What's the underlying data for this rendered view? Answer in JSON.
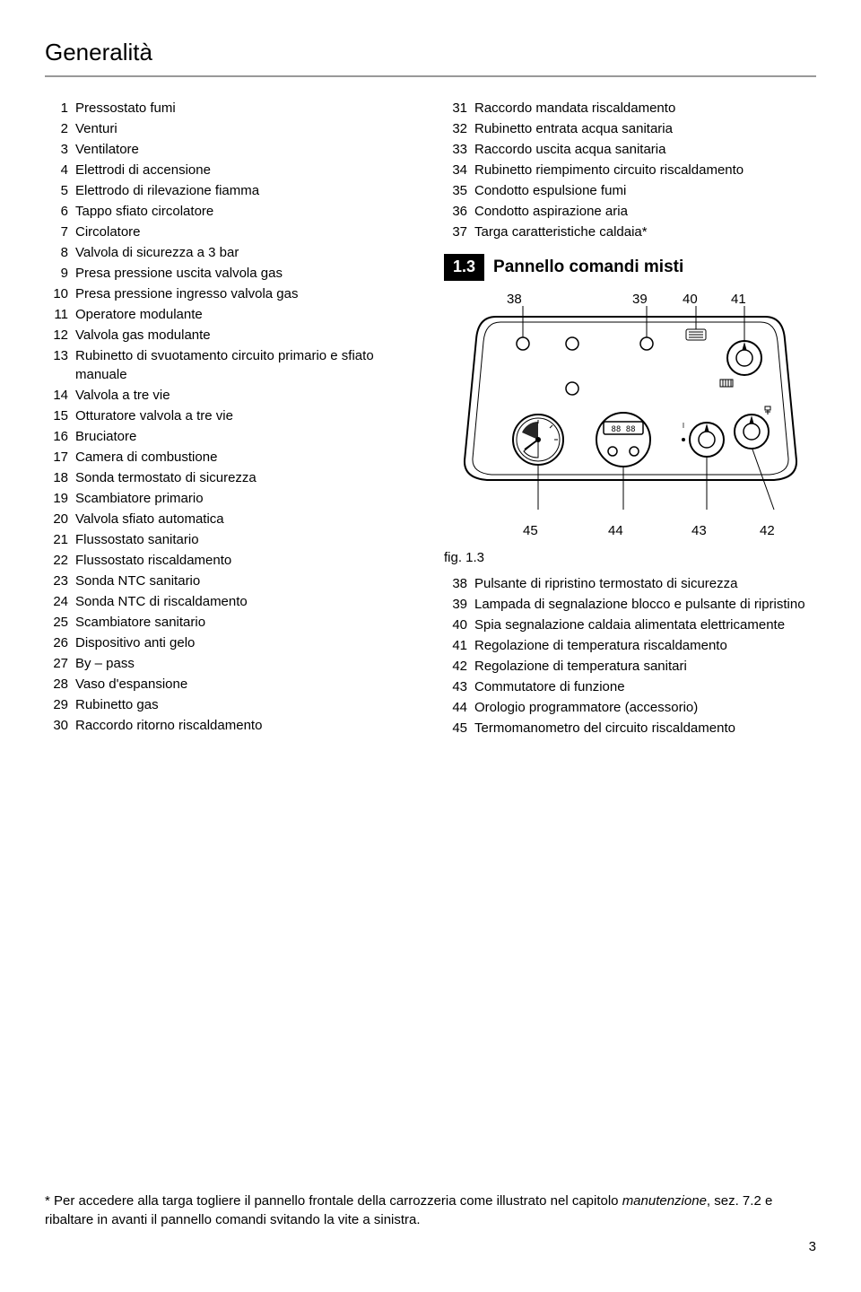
{
  "header": "Generalità",
  "leftList": [
    {
      "n": "1",
      "t": "Pressostato fumi"
    },
    {
      "n": "2",
      "t": "Venturi"
    },
    {
      "n": "3",
      "t": "Ventilatore"
    },
    {
      "n": "4",
      "t": "Elettrodi di accensione"
    },
    {
      "n": "5",
      "t": "Elettrodo di rilevazione fiamma"
    },
    {
      "n": "6",
      "t": "Tappo sfiato circolatore"
    },
    {
      "n": "7",
      "t": "Circolatore"
    },
    {
      "n": "8",
      "t": "Valvola di sicurezza a 3 bar"
    },
    {
      "n": "9",
      "t": "Presa pressione uscita valvola gas"
    },
    {
      "n": "10",
      "t": "Presa pressione ingresso valvola gas"
    },
    {
      "n": "11",
      "t": "Operatore modulante"
    },
    {
      "n": "12",
      "t": "Valvola gas modulante"
    },
    {
      "n": "13",
      "t": "Rubinetto di svuotamento circuito primario e sfiato manuale"
    },
    {
      "n": "14",
      "t": "Valvola a tre vie"
    },
    {
      "n": "15",
      "t": "Otturatore valvola a tre vie"
    },
    {
      "n": "16",
      "t": "Bruciatore"
    },
    {
      "n": "17",
      "t": "Camera di combustione"
    },
    {
      "n": "18",
      "t": "Sonda termostato di sicurezza"
    },
    {
      "n": "19",
      "t": "Scambiatore primario"
    },
    {
      "n": "20",
      "t": "Valvola sfiato automatica"
    },
    {
      "n": "21",
      "t": "Flussostato sanitario"
    },
    {
      "n": "22",
      "t": "Flussostato riscaldamento"
    },
    {
      "n": "23",
      "t": "Sonda NTC sanitario"
    },
    {
      "n": "24",
      "t": "Sonda NTC di riscaldamento"
    },
    {
      "n": "25",
      "t": "Scambiatore sanitario"
    },
    {
      "n": "26",
      "t": "Dispositivo anti gelo"
    },
    {
      "n": "27",
      "t": "By – pass"
    },
    {
      "n": "28",
      "t": "Vaso d'espansione"
    },
    {
      "n": "29",
      "t": "Rubinetto gas"
    },
    {
      "n": "30",
      "t": "Raccordo ritorno riscaldamento"
    }
  ],
  "rightTop": [
    {
      "n": "31",
      "t": "Raccordo mandata riscaldamento"
    },
    {
      "n": "32",
      "t": "Rubinetto entrata acqua sanitaria"
    },
    {
      "n": "33",
      "t": "Raccordo uscita acqua sanitaria"
    },
    {
      "n": "34",
      "t": "Rubinetto riempimento circuito riscaldamento"
    },
    {
      "n": "35",
      "t": "Condotto espulsione fumi"
    },
    {
      "n": "36",
      "t": "Condotto aspirazione aria"
    },
    {
      "n": "37",
      "t": "Targa caratteristiche caldaia*"
    }
  ],
  "section": {
    "num": "1.3",
    "title": "Pannello comandi misti"
  },
  "diagram": {
    "topLabels": [
      "38",
      "39",
      "40",
      "41"
    ],
    "bottomLabels": [
      "45",
      "44",
      "43",
      "42"
    ],
    "displayText": "88 88",
    "colors": {
      "stroke": "#000000",
      "fill": "#ffffff",
      "hatch": "#000000"
    }
  },
  "figCaption": "fig. 1.3",
  "rightBottom": [
    {
      "n": "38",
      "t": "Pulsante di ripristino termostato di sicurezza"
    },
    {
      "n": "39",
      "t": "Lampada di segnalazione blocco e pulsante di ripristino"
    },
    {
      "n": "40",
      "t": "Spia segnalazione caldaia alimentata elettricamente"
    },
    {
      "n": "41",
      "t": "Regolazione di temperatura riscaldamento"
    },
    {
      "n": "42",
      "t": "Regolazione di temperatura sanitari"
    },
    {
      "n": "43",
      "t": "Commutatore di funzione"
    },
    {
      "n": "44",
      "t": "Orologio programmatore (accessorio)"
    },
    {
      "n": "45",
      "t": "Termomanometro del circuito riscaldamento"
    }
  ],
  "footnote": {
    "line1a": "* Per accedere alla targa togliere il pannello frontale della carrozzeria  come illustrato nel capitolo ",
    "line1b": "manutenzione",
    "line1c": ", sez. 7.2 e ribaltare in avanti il pannello comandi svitando la vite a sinistra."
  },
  "pageNum": "3"
}
